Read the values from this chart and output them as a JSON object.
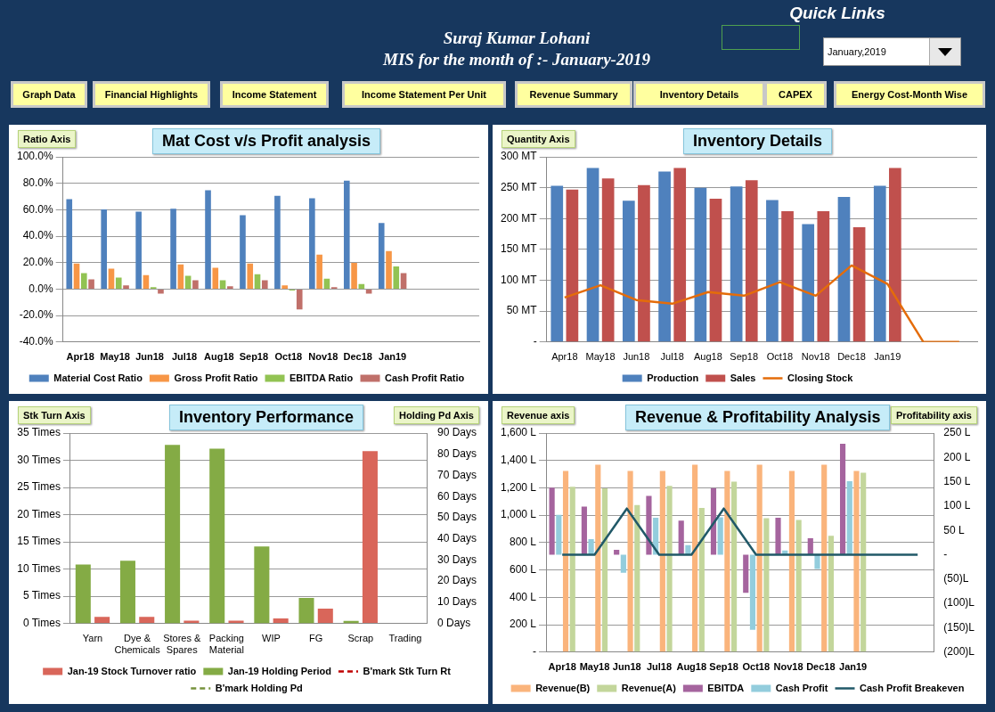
{
  "chart_data": [
    {
      "type": "other",
      "title": "Suraj Kumar Lohani",
      "subtitle": "MIS for the month of :- January-2019",
      "annotations": [
        "Quick Links",
        "January,2019",
        "Graph Data",
        "Financial Highlights",
        "Income Statement",
        "Income Statement Per Unit",
        "Revenue Summary",
        "Inventory Details",
        "CAPEX",
        "Energy Cost-Month Wise"
      ]
    },
    {
      "type": "bar",
      "title": "Mat Cost v/s  Profit analysis",
      "ylabel": "Ratio Axis",
      "categories": [
        "Apr18",
        "May18",
        "Jun18",
        "Jul18",
        "Aug18",
        "Sep18",
        "Oct18",
        "Nov18",
        "Dec18",
        "Jan19",
        null,
        null
      ],
      "series": [
        {
          "name": "Material Cost Ratio",
          "color": "#4f81bd",
          "values": [
            68,
            60.2,
            58.6,
            60.7,
            74.7,
            55.9,
            70.6,
            68.7,
            82,
            49.9,
            null,
            null
          ]
        },
        {
          "name": "Gross Profit Ratio",
          "color": "#f79646",
          "values": [
            19.3,
            15.4,
            10.6,
            18.6,
            16.1,
            19.3,
            2.8,
            26,
            19.8,
            28.7,
            null,
            null
          ]
        },
        {
          "name": "EBITDA Ratio",
          "color": "#92c353",
          "values": [
            12,
            8.7,
            1.4,
            10.1,
            6.7,
            11.3,
            -1,
            7.8,
            3.9,
            17.2,
            null,
            null
          ]
        },
        {
          "name": "Cash Profit Ratio",
          "color": "#c0706a",
          "values": [
            7.4,
            2.8,
            -3.4,
            6.7,
            2.1,
            6.7,
            -15.4,
            1.4,
            -3.4,
            12,
            null,
            null
          ]
        }
      ],
      "ylim": [
        -40,
        100
      ],
      "yticks": [
        {
          "value": -40,
          "label": "-40.0%"
        },
        {
          "value": -20,
          "label": "-20.0%"
        },
        {
          "value": 0,
          "label": "0.0%"
        },
        {
          "value": 20,
          "label": "20.0%"
        },
        {
          "value": 40,
          "label": "40.0%"
        },
        {
          "value": 60,
          "label": "60.0%"
        },
        {
          "value": 80,
          "label": "80.0%"
        },
        {
          "value": 100,
          "label": "100.0%"
        }
      ],
      "grid": "y",
      "legend": "bottom"
    },
    {
      "type": "bar",
      "title": "Inventory Details",
      "ylabel": "Quantity Axis",
      "categories": [
        "Apr18",
        "May18",
        "Jun18",
        "Jul18",
        "Aug18",
        "Sep18",
        "Oct18",
        "Nov18",
        "Dec18",
        "Jan19",
        null,
        null
      ],
      "series": [
        {
          "name": "Production",
          "color": "#4f81bd",
          "values": [
            253,
            282,
            229,
            276,
            250,
            252,
            230,
            191,
            235,
            253,
            null,
            null
          ]
        },
        {
          "name": "Sales",
          "color": "#c0504d",
          "values": [
            247,
            265,
            254,
            282,
            232,
            262,
            212,
            212,
            186,
            282,
            null,
            null
          ]
        },
        {
          "name": "Closing Stock",
          "type": "line",
          "color": "#e46c0a",
          "values": [
            72,
            92,
            68,
            62,
            81,
            75,
            97,
            75,
            124,
            94,
            0,
            0
          ]
        }
      ],
      "ylim": [
        0,
        300
      ],
      "yticks": [
        {
          "value": 0,
          "label": "-"
        },
        {
          "value": 50,
          "label": "50 MT"
        },
        {
          "value": 100,
          "label": "100 MT"
        },
        {
          "value": 150,
          "label": "150 MT"
        },
        {
          "value": 200,
          "label": "200 MT"
        },
        {
          "value": 250,
          "label": "250 MT"
        },
        {
          "value": 300,
          "label": "300 MT"
        }
      ],
      "grid": "y",
      "legend": "bottom",
      "marker": "none"
    },
    {
      "type": "bar",
      "title": "Inventory Performance",
      "ylabel": "Stk Turn Axis",
      "y2label": "Holding Pd Axis",
      "categories": [
        "Yarn",
        "Dye & Chemicals",
        "Stores & Spares",
        "Packing Material",
        "WIP",
        "FG",
        "Scrap",
        "Trading"
      ],
      "series": [
        {
          "name": "Jan-19 Stock Turnover ratio",
          "color": "#d9665a",
          "values": [
            1.2,
            1.2,
            0.5,
            0.5,
            0.9,
            2.7,
            31.7,
            null
          ]
        },
        {
          "name": "Jan-19 Holding Period",
          "color": "#84ab45",
          "axis": "y2",
          "values": [
            27.9,
            29.6,
            84.4,
            82.6,
            36.4,
            12.1,
            1.2,
            null
          ]
        },
        {
          "name": "B'mark Stk Turn Rt",
          "type": "line",
          "line_style": "dashed",
          "color": "#c00000",
          "values": [
            null,
            null,
            null,
            null,
            null,
            null,
            null,
            null
          ]
        },
        {
          "name": "B'mark Holding Pd",
          "type": "line",
          "line_style": "dashed",
          "color": "#76923c",
          "axis": "y2",
          "values": [
            null,
            null,
            null,
            null,
            null,
            null,
            null,
            null
          ]
        }
      ],
      "ylim": [
        0,
        35
      ],
      "yticks": [
        {
          "value": 0,
          "label": "0 Times"
        },
        {
          "value": 5,
          "label": "5 Times"
        },
        {
          "value": 10,
          "label": "10 Times"
        },
        {
          "value": 15,
          "label": "15 Times"
        },
        {
          "value": 20,
          "label": "20 Times"
        },
        {
          "value": 25,
          "label": "25 Times"
        },
        {
          "value": 30,
          "label": "30 Times"
        },
        {
          "value": 35,
          "label": "35 Times"
        }
      ],
      "y2lim": [
        0,
        90
      ],
      "y2ticks": [
        {
          "value": 0,
          "label": "0 Days"
        },
        {
          "value": 10,
          "label": "10 Days"
        },
        {
          "value": 20,
          "label": "20 Days"
        },
        {
          "value": 30,
          "label": "30 Days"
        },
        {
          "value": 40,
          "label": "40 Days"
        },
        {
          "value": 50,
          "label": "50 Days"
        },
        {
          "value": 60,
          "label": "60 Days"
        },
        {
          "value": 70,
          "label": "70 Days"
        },
        {
          "value": 80,
          "label": "80 Days"
        },
        {
          "value": 90,
          "label": "90 Days"
        }
      ],
      "grid": "y",
      "legend": "bottom",
      "marker": "none"
    },
    {
      "type": "bar",
      "title": "Revenue & Profitability Analysis",
      "ylabel": "Revenue axis",
      "y2label": "Profitability axis",
      "categories": [
        "Apr18",
        "May18",
        "Jun18",
        "Jul18",
        "Aug18",
        "Sep18",
        "Oct18",
        "Nov18",
        "Dec18",
        "Jan19",
        null,
        null
      ],
      "series": [
        {
          "name": "Revenue(B)",
          "color": "#fab47c",
          "values": [
            1323,
            1369,
            1323,
            1323,
            1369,
            1323,
            1369,
            1323,
            1369,
            1323,
            null,
            null
          ]
        },
        {
          "name": "Revenue(A)",
          "color": "#c3d69b",
          "values": [
            1208,
            1196,
            1074,
            1214,
            1053,
            1246,
            978,
            965,
            849,
            1310,
            null,
            null
          ]
        },
        {
          "name": "EBITDA",
          "color": "#a5649e",
          "axis": "y2",
          "values": [
            138,
            99,
            10,
            121,
            70,
            137,
            -78,
            76,
            34,
            228,
            null,
            null
          ]
        },
        {
          "name": "Cash Profit",
          "color": "#93cddd",
          "axis": "y2",
          "values": [
            82,
            32,
            -37,
            76,
            20,
            77,
            -154,
            9,
            -29,
            151,
            null,
            null
          ]
        },
        {
          "name": "Cash Profit Breakeven",
          "type": "line",
          "color": "#215968",
          "axis": "y2",
          "values": [
            0,
            0,
            95,
            0,
            0,
            95,
            0,
            0,
            0,
            0,
            0,
            0
          ]
        }
      ],
      "ylim": [
        0,
        1600
      ],
      "yticks": [
        {
          "value": 0,
          "label": "-"
        },
        {
          "value": 200,
          "label": "200 L"
        },
        {
          "value": 400,
          "label": "400 L"
        },
        {
          "value": 600,
          "label": "600 L"
        },
        {
          "value": 800,
          "label": "800 L"
        },
        {
          "value": 1000,
          "label": "1,000 L"
        },
        {
          "value": 1200,
          "label": "1,200 L"
        },
        {
          "value": 1400,
          "label": "1,400 L"
        },
        {
          "value": 1600,
          "label": "1,600 L"
        }
      ],
      "y2lim": [
        -200,
        250
      ],
      "y2ticks": [
        {
          "value": -200,
          "label": "(200)L"
        },
        {
          "value": -150,
          "label": "(150)L"
        },
        {
          "value": -100,
          "label": "(100)L"
        },
        {
          "value": -50,
          "label": "(50)L"
        },
        {
          "value": 0,
          "label": "-"
        },
        {
          "value": 50,
          "label": "50 L"
        },
        {
          "value": 100,
          "label": "100 L"
        },
        {
          "value": 150,
          "label": "150 L"
        },
        {
          "value": 200,
          "label": "200 L"
        },
        {
          "value": 250,
          "label": "250 L"
        }
      ],
      "grid": "y",
      "legend": "bottom",
      "marker": "none"
    }
  ]
}
